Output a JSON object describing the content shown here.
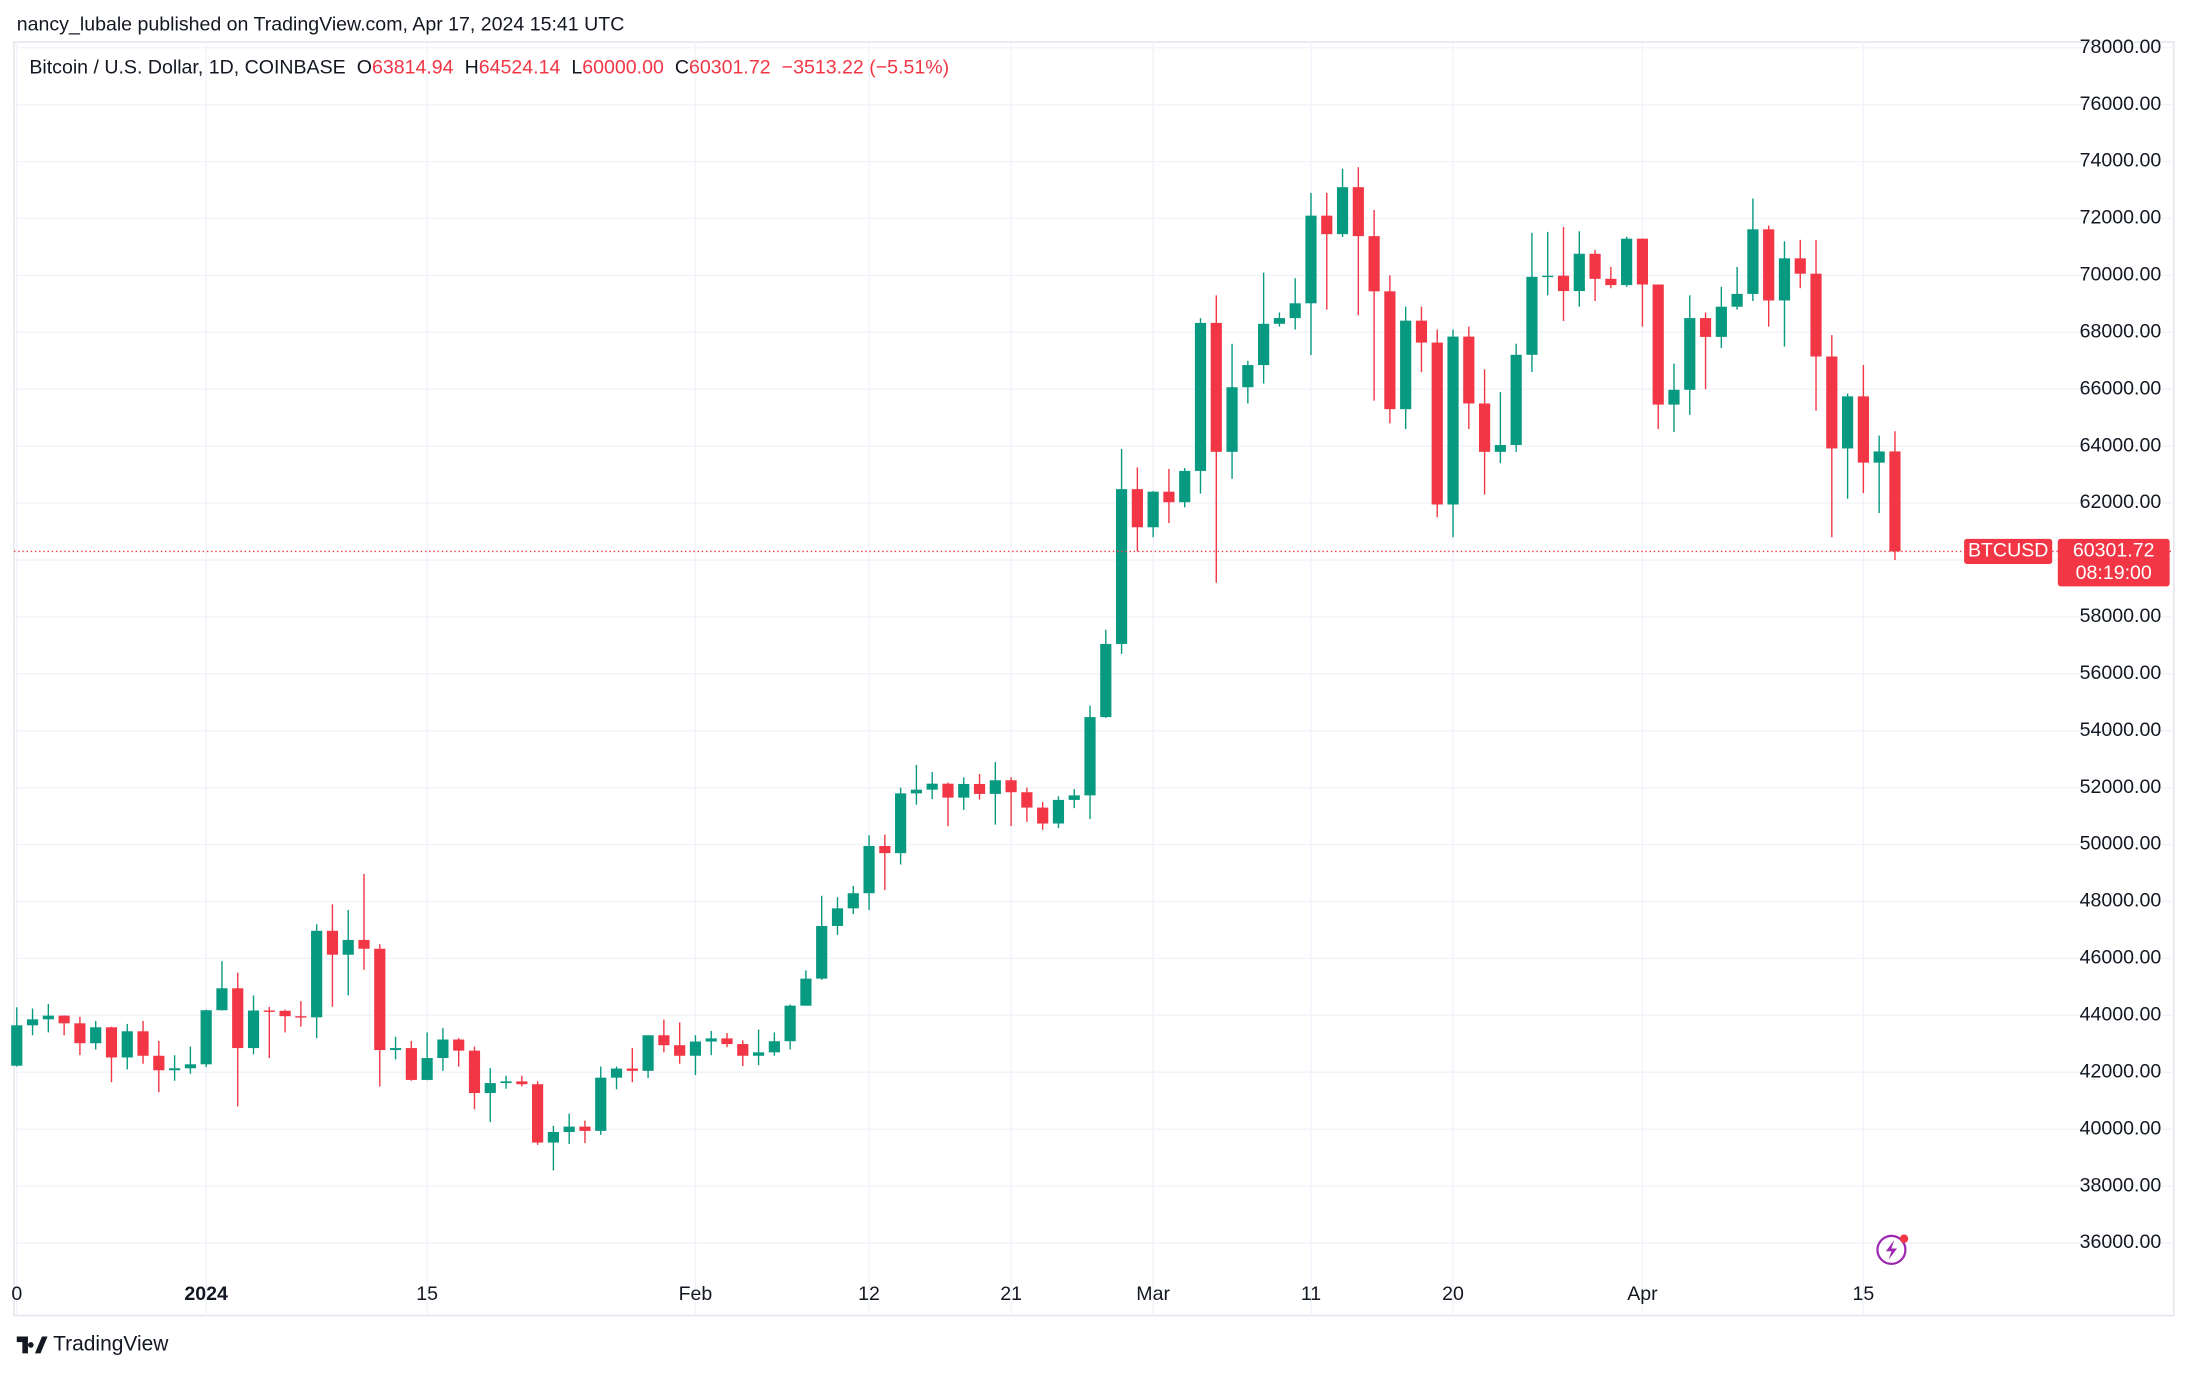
{
  "chart_data": {
    "type": "candlestick",
    "header": "nancy_lubale published on TradingView.com, Apr 17, 2024 15:41 UTC",
    "footer": "TradingView",
    "title": "Bitcoin / U.S. Dollar, 1D, COINBASE",
    "legend": {
      "o_label": "O",
      "open": "63814.94",
      "h_label": "H",
      "high": "64524.14",
      "l_label": "L",
      "low": "60000.00",
      "c_label": "C",
      "close": "60301.72",
      "change": "−3513.22 (−5.51%)"
    },
    "symbol": "BTCUSD",
    "countdown": "08:19:00",
    "up_color": "#089981",
    "down_color": "#f23645",
    "grid": true,
    "categories": [
      "0",
      null,
      null,
      null,
      null,
      null,
      null,
      null,
      null,
      null,
      null,
      null,
      "2024",
      null,
      null,
      null,
      null,
      null,
      null,
      null,
      null,
      null,
      null,
      null,
      null,
      null,
      "15",
      null,
      null,
      null,
      null,
      null,
      null,
      null,
      null,
      null,
      null,
      null,
      null,
      null,
      null,
      null,
      null,
      "Feb",
      null,
      null,
      null,
      null,
      null,
      null,
      null,
      null,
      null,
      null,
      "12",
      null,
      null,
      null,
      null,
      null,
      null,
      null,
      null,
      "21",
      null,
      null,
      null,
      null,
      null,
      null,
      null,
      null,
      "Mar",
      null,
      null,
      null,
      null,
      null,
      null,
      null,
      null,
      null,
      "11",
      null,
      null,
      null,
      null,
      null,
      null,
      null,
      null,
      "20",
      null,
      null,
      null,
      null,
      null,
      null,
      null,
      null,
      null,
      null,
      null,
      "Apr",
      null,
      null,
      null,
      null,
      null,
      null,
      null,
      null,
      null,
      null,
      null,
      null,
      null,
      "15",
      null,
      null
    ],
    "open": [
      42230,
      43650,
      43860,
      43990,
      43720,
      43020,
      43580,
      42520,
      43440,
      42580,
      42070,
      42140,
      42280,
      44180,
      44950,
      42850,
      44170,
      44160,
      43970,
      43930,
      46970,
      46130,
      46650,
      46340,
      42780,
      42850,
      41730,
      42500,
      43150,
      42760,
      41270,
      41620,
      41680,
      41580,
      39530,
      39900,
      40090,
      39940,
      41810,
      42130,
      42050,
      43300,
      42950,
      42580,
      43080,
      43190,
      42990,
      42580,
      42700,
      43090,
      44340,
      45290,
      47140,
      47760,
      48290,
      49950,
      49700,
      51800,
      51930,
      52140,
      51650,
      52130,
      51780,
      52260,
      51840,
      51300,
      50740,
      51570,
      51730,
      54480,
      57050,
      62490,
      61150,
      62400,
      62030,
      63130,
      68330,
      63800,
      66070,
      66850,
      68300,
      68500,
      69020,
      72100,
      71450,
      73100,
      71380,
      69440,
      65300,
      68410,
      67640,
      61950,
      67850,
      65500,
      63800,
      64040,
      67210,
      69950,
      69990,
      69450,
      70760,
      69880,
      69660,
      71290,
      69680,
      65460,
      65980,
      68500,
      67840,
      68900,
      69350,
      71620,
      69120,
      70600,
      70060,
      67150,
      63920,
      65750,
      63420,
      63814.94
    ],
    "high": [
      44280,
      44240,
      44400,
      44000,
      43950,
      43800,
      43600,
      43700,
      43800,
      43100,
      42600,
      42900,
      44200,
      45900,
      45500,
      44700,
      44300,
      44200,
      44500,
      47200,
      47900,
      47700,
      48970,
      46500,
      43250,
      43100,
      43400,
      43550,
      43200,
      42900,
      42150,
      41880,
      41880,
      41680,
      40120,
      40550,
      40300,
      42200,
      42200,
      42850,
      43300,
      43850,
      43750,
      43300,
      43450,
      43380,
      43120,
      43500,
      43400,
      44380,
      45580,
      48200,
      48150,
      48550,
      50330,
      50350,
      52000,
      52800,
      52550,
      52180,
      52360,
      52480,
      52900,
      52370,
      52000,
      51500,
      51700,
      51950,
      54880,
      57550,
      63900,
      63250,
      62420,
      63200,
      63230,
      68500,
      69300,
      67600,
      67000,
      70100,
      68700,
      69900,
      72900,
      72900,
      73750,
      73800,
      72300,
      70000,
      68900,
      68900,
      68100,
      68100,
      68200,
      66700,
      65900,
      67600,
      71500,
      71530,
      71700,
      71550,
      70900,
      70300,
      71360,
      71300,
      69680,
      66900,
      69300,
      68700,
      69600,
      70300,
      72700,
      71750,
      71200,
      71250,
      71250,
      67900,
      65850,
      66850,
      64370,
      64524.14
    ],
    "low": [
      42200,
      43300,
      43400,
      43300,
      42600,
      42800,
      41650,
      42100,
      42300,
      41300,
      41700,
      41950,
      42180,
      44170,
      40800,
      42630,
      42500,
      43400,
      43600,
      43200,
      44300,
      44700,
      45600,
      41500,
      42450,
      41700,
      41720,
      42050,
      42200,
      40700,
      40250,
      41420,
      41500,
      39450,
      38550,
      39480,
      39510,
      39800,
      41400,
      41650,
      41800,
      42700,
      42300,
      41900,
      42600,
      42880,
      42220,
      42250,
      42580,
      42800,
      44340,
      45250,
      46830,
      47560,
      47700,
      48400,
      49300,
      51400,
      51600,
      50650,
      51220,
      51580,
      50700,
      50650,
      50800,
      50520,
      50580,
      51280,
      50900,
      54450,
      56700,
      60300,
      60800,
      61300,
      61850,
      62330,
      59200,
      62850,
      65500,
      66200,
      68200,
      68100,
      67200,
      68800,
      71350,
      68600,
      65600,
      64800,
      64600,
      66600,
      61500,
      60800,
      64600,
      62300,
      63400,
      63800,
      66600,
      69300,
      68400,
      68900,
      69100,
      69550,
      69600,
      68200,
      64600,
      64500,
      65100,
      66000,
      67450,
      68800,
      69100,
      68200,
      67500,
      69550,
      65250,
      60800,
      62150,
      62350,
      61650,
      60000
    ],
    "close": [
      43650,
      43860,
      43990,
      43720,
      43020,
      43580,
      42520,
      43440,
      42580,
      42070,
      42140,
      42280,
      44180,
      44950,
      42850,
      44170,
      44160,
      43970,
      43930,
      46970,
      46130,
      46650,
      46340,
      42780,
      42850,
      41730,
      42500,
      43150,
      42760,
      41270,
      41620,
      41680,
      41580,
      39530,
      39900,
      40090,
      39940,
      41810,
      42130,
      42050,
      43300,
      42950,
      42580,
      43080,
      43190,
      42990,
      42580,
      42700,
      43090,
      44340,
      45290,
      47140,
      47760,
      48290,
      49950,
      49700,
      51800,
      51930,
      52140,
      51650,
      52130,
      51780,
      52260,
      51840,
      51300,
      50740,
      51570,
      51730,
      54480,
      57050,
      62490,
      61150,
      62400,
      62030,
      63130,
      68330,
      63800,
      66070,
      66850,
      68300,
      68500,
      69020,
      72100,
      71450,
      73100,
      71380,
      69440,
      65300,
      68410,
      67640,
      61950,
      67850,
      65500,
      63800,
      64040,
      67210,
      69950,
      69990,
      69450,
      70760,
      69880,
      69660,
      71290,
      69680,
      65460,
      65980,
      68500,
      67840,
      68900,
      69350,
      71620,
      69120,
      70600,
      70060,
      67150,
      63920,
      65750,
      63420,
      63814.94,
      60301.72
    ],
    "ylim": [
      33450,
      78200
    ],
    "yticks": [
      {
        "value": 36000,
        "label": "36000.00"
      },
      {
        "value": 38000,
        "label": "38000.00"
      },
      {
        "value": 40000,
        "label": "40000.00"
      },
      {
        "value": 42000,
        "label": "42000.00"
      },
      {
        "value": 44000,
        "label": "44000.00"
      },
      {
        "value": 46000,
        "label": "46000.00"
      },
      {
        "value": 48000,
        "label": "48000.00"
      },
      {
        "value": 50000,
        "label": "50000.00"
      },
      {
        "value": 52000,
        "label": "52000.00"
      },
      {
        "value": 54000,
        "label": "54000.00"
      },
      {
        "value": 56000,
        "label": "56000.00"
      },
      {
        "value": 58000,
        "label": "58000.00"
      },
      {
        "value": 60000,
        "label": "60000.00"
      },
      {
        "value": 62000,
        "label": "62000.00"
      },
      {
        "value": 64000,
        "label": "64000.00"
      },
      {
        "value": 66000,
        "label": "66000.00"
      },
      {
        "value": 68000,
        "label": "68000.00"
      },
      {
        "value": 70000,
        "label": "70000.00"
      },
      {
        "value": 72000,
        "label": "72000.00"
      },
      {
        "value": 74000,
        "label": "74000.00"
      },
      {
        "value": 76000,
        "label": "76000.00"
      },
      {
        "value": 78000,
        "label": "78000.00"
      }
    ]
  }
}
